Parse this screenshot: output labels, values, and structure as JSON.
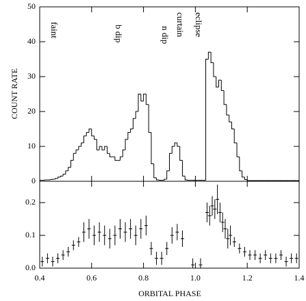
{
  "chart_data": [
    {
      "type": "histogram",
      "ylabel": "COUNT RATE",
      "bins": [
        0.4,
        0.41,
        0.42,
        0.43,
        0.44,
        0.45,
        0.46,
        0.47,
        0.48,
        0.49,
        0.5,
        0.51,
        0.52,
        0.53,
        0.54,
        0.55,
        0.56,
        0.57,
        0.58,
        0.59,
        0.6,
        0.61,
        0.62,
        0.63,
        0.64,
        0.65,
        0.66,
        0.67,
        0.68,
        0.69,
        0.7,
        0.71,
        0.72,
        0.73,
        0.74,
        0.75,
        0.76,
        0.77,
        0.78,
        0.79,
        0.8,
        0.81,
        0.82,
        0.83,
        0.84,
        0.85,
        0.86,
        0.87,
        0.88,
        0.89,
        0.9,
        0.91,
        0.92,
        0.93,
        0.94,
        0.95,
        0.96,
        0.97,
        0.98,
        0.99,
        1.0,
        1.01,
        1.02,
        1.03,
        1.04,
        1.05,
        1.06,
        1.07,
        1.08,
        1.09,
        1.1,
        1.11,
        1.12,
        1.13,
        1.14,
        1.15,
        1.16,
        1.17,
        1.18,
        1.19,
        1.2,
        1.21,
        1.22,
        1.23,
        1.24,
        1.25,
        1.26,
        1.27,
        1.28,
        1.29,
        1.3,
        1.31,
        1.32,
        1.33,
        1.34,
        1.35,
        1.36,
        1.37,
        1.38,
        1.39,
        1.4
      ],
      "values": [
        0.3,
        0.3,
        0.4,
        0.4,
        0.5,
        0.6,
        0.8,
        1.2,
        1.5,
        2,
        3,
        4,
        6,
        8,
        9,
        10,
        11,
        13,
        14,
        15,
        13,
        12,
        9,
        10,
        9,
        10,
        8,
        7,
        7,
        6,
        6,
        7,
        9,
        12,
        14,
        15,
        18,
        20,
        25,
        23,
        25,
        22,
        14,
        5,
        1,
        0.4,
        0.3,
        0.3,
        0.6,
        3,
        8,
        10,
        11,
        10,
        6,
        1.5,
        0.4,
        0.3,
        0.3,
        0.3,
        0.3,
        0.3,
        0.3,
        0.3,
        35,
        37,
        34,
        30,
        27,
        29,
        26,
        22,
        19,
        17,
        15,
        11,
        7,
        3,
        1.2,
        0.5,
        0.2,
        0.2,
        0.2,
        0.2,
        0.2,
        0.2,
        0.2,
        0.2,
        0.2,
        0.2,
        0.2,
        0.2,
        0.2,
        0.2,
        0.2,
        0.2,
        0.2,
        0.2,
        0.2,
        0.2
      ],
      "color": "#000000",
      "xlim": [
        0.4,
        1.4
      ],
      "xticks": [
        0.4,
        0.6,
        0.8,
        1,
        1.2,
        1.4
      ],
      "ylim": [
        0,
        50
      ],
      "yticks": [
        0,
        10,
        20,
        30,
        40,
        50
      ],
      "annotations": [
        "faint",
        "b dip",
        "n dip",
        "curtain",
        "eclipse"
      ]
    },
    {
      "type": "errorbar",
      "xlabel": "ORBITAL PHASE",
      "x": [
        0.41,
        0.43,
        0.45,
        0.47,
        0.49,
        0.51,
        0.53,
        0.55,
        0.57,
        0.59,
        0.61,
        0.63,
        0.65,
        0.67,
        0.69,
        0.71,
        0.73,
        0.75,
        0.77,
        0.79,
        0.81,
        0.83,
        0.85,
        0.87,
        0.89,
        0.91,
        0.93,
        0.95,
        0.99,
        1.02,
        1.045,
        1.055,
        1.065,
        1.075,
        1.085,
        1.095,
        1.105,
        1.115,
        1.125,
        1.135,
        1.15,
        1.17,
        1.19,
        1.21,
        1.23,
        1.25,
        1.27,
        1.29,
        1.31,
        1.33,
        1.35,
        1.37,
        1.39
      ],
      "values": [
        0.02,
        0.03,
        0.02,
        0.03,
        0.04,
        0.05,
        0.07,
        0.08,
        0.11,
        0.12,
        0.1,
        0.11,
        0.1,
        0.09,
        0.1,
        0.12,
        0.11,
        0.12,
        0.1,
        0.12,
        0.13,
        0.06,
        0.03,
        0.03,
        0.06,
        0.1,
        0.11,
        0.09,
        0.01,
        0.01,
        0.17,
        0.16,
        0.19,
        0.18,
        0.21,
        0.17,
        0.14,
        0.12,
        0.09,
        0.1,
        0.08,
        0.06,
        0.05,
        0.04,
        0.04,
        0.03,
        0.04,
        0.03,
        0.03,
        0.04,
        0.02,
        0.03,
        0.03
      ],
      "errors": [
        0.015,
        0.015,
        0.015,
        0.015,
        0.015,
        0.015,
        0.015,
        0.015,
        0.03,
        0.03,
        0.03,
        0.03,
        0.03,
        0.03,
        0.03,
        0.03,
        0.03,
        0.03,
        0.03,
        0.03,
        0.03,
        0.02,
        0.02,
        0.02,
        0.02,
        0.025,
        0.025,
        0.025,
        0.02,
        0.02,
        0.03,
        0.03,
        0.03,
        0.03,
        0.045,
        0.03,
        0.03,
        0.03,
        0.03,
        0.03,
        0.015,
        0.015,
        0.015,
        0.015,
        0.015,
        0.015,
        0.015,
        0.015,
        0.015,
        0.015,
        0.015,
        0.015,
        0.015
      ],
      "color": "#000000",
      "xlim": [
        0.4,
        1.4
      ],
      "xticks": [
        0.4,
        0.6,
        0.8,
        {
          "value": 1,
          "label": "1.0"
        },
        1.2,
        1.4
      ],
      "ylim": [
        0,
        0.265
      ],
      "yticks": [
        {
          "value": 0,
          "label": "0.0"
        },
        0.1,
        0.2
      ]
    }
  ]
}
